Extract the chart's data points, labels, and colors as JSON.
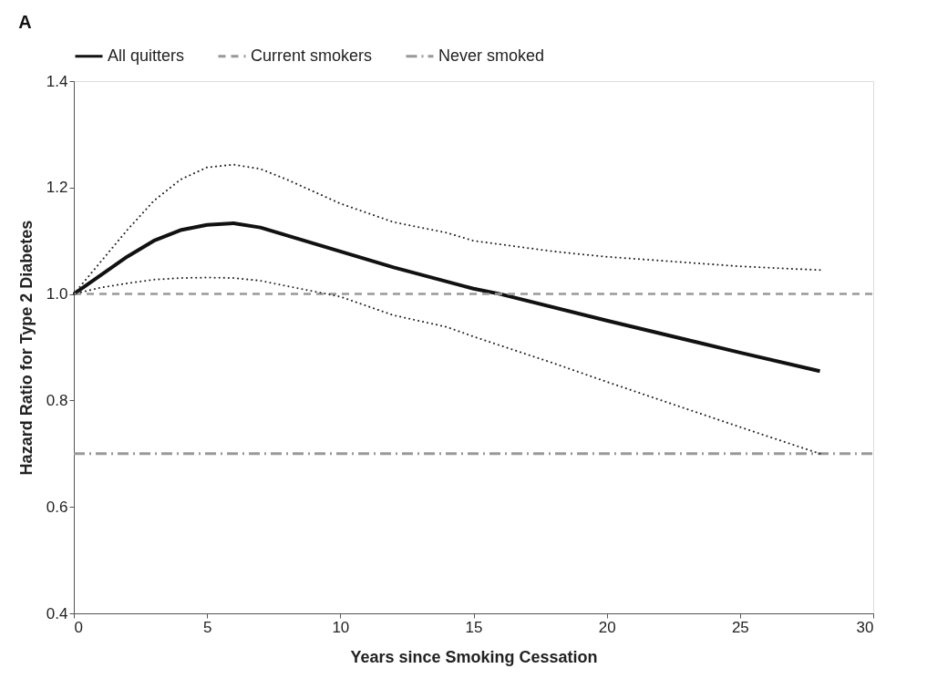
{
  "chart_data": {
    "type": "line",
    "title": "A",
    "xlabel": "Years since Smoking Cessation",
    "ylabel": "Hazard Ratio for Type 2 Diabetes",
    "xlim": [
      0,
      30
    ],
    "xticks": [
      0,
      5,
      10,
      15,
      20,
      25,
      30
    ],
    "ylim": [
      0.4,
      1.4
    ],
    "yticks": [
      0.4,
      0.6,
      0.8,
      {
        "value": 1.0,
        "label": "1.0"
      },
      1.2,
      1.4
    ],
    "grid": false,
    "legend": "top",
    "marker": "none",
    "series": [
      {
        "name": "All quitters",
        "color": "#111111",
        "line_style": "solid",
        "x": [
          0,
          1,
          2,
          3,
          4,
          5,
          6,
          7,
          8,
          10,
          12,
          15,
          16,
          20,
          25,
          28
        ],
        "values": [
          1.0,
          1.035,
          1.07,
          1.1,
          1.12,
          1.13,
          1.133,
          1.125,
          1.11,
          1.08,
          1.05,
          1.01,
          1.0,
          0.95,
          0.89,
          0.855
        ]
      },
      {
        "name": "Current smokers",
        "color": "#999999",
        "line_style": "dashed",
        "x": [
          0,
          30
        ],
        "values": [
          1.0,
          1.0
        ]
      },
      {
        "name": "Never smoked",
        "color": "#999999",
        "line_style": "dashdot",
        "x": [
          0,
          30
        ],
        "values": [
          0.7,
          0.7
        ]
      },
      {
        "color": "#222222",
        "line_style": "dotted",
        "x": [
          0,
          1,
          2,
          3,
          4,
          5,
          6,
          7,
          8,
          10,
          12,
          14,
          15,
          18,
          20,
          25,
          28
        ],
        "values": [
          1.0,
          1.06,
          1.12,
          1.175,
          1.215,
          1.238,
          1.243,
          1.235,
          1.215,
          1.17,
          1.135,
          1.115,
          1.1,
          1.08,
          1.07,
          1.052,
          1.045
        ]
      },
      {
        "color": "#222222",
        "line_style": "dotted",
        "x": [
          0,
          1,
          2,
          3,
          4,
          5,
          6,
          7,
          8,
          10,
          12,
          14,
          15,
          18,
          20,
          25,
          28
        ],
        "values": [
          1.0,
          1.012,
          1.02,
          1.027,
          1.03,
          1.031,
          1.03,
          1.025,
          1.015,
          0.995,
          0.96,
          0.938,
          0.92,
          0.87,
          0.835,
          0.75,
          0.7
        ]
      }
    ]
  }
}
